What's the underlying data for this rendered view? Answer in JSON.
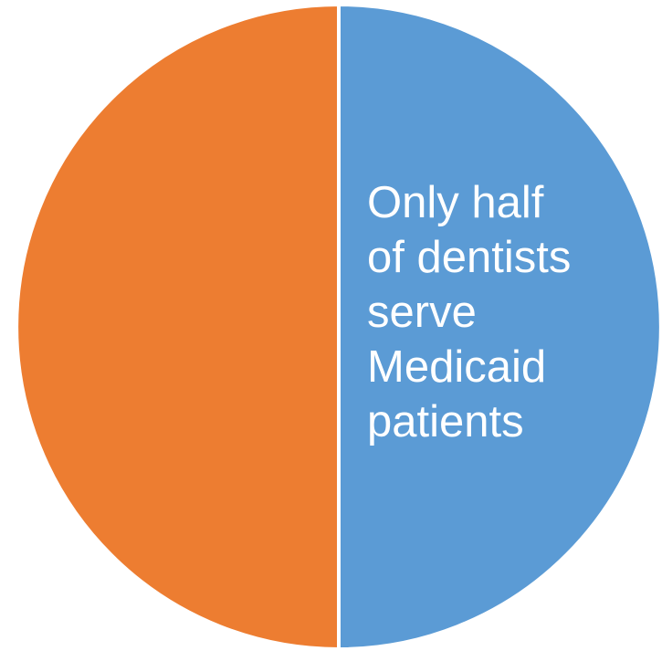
{
  "chart_data": {
    "type": "pie",
    "title": "",
    "slices": [
      {
        "label": "Only half of dentists serve Medicaid patients",
        "value": 50,
        "color": "#5b9bd5",
        "label_text": "Only half\nof dentists\nserve\nMedicaid\npatients"
      },
      {
        "label": "",
        "value": 50,
        "color": "#ed7d31",
        "label_text": ""
      }
    ],
    "start_angle_deg": 0,
    "direction": "clockwise",
    "legend": "none"
  }
}
